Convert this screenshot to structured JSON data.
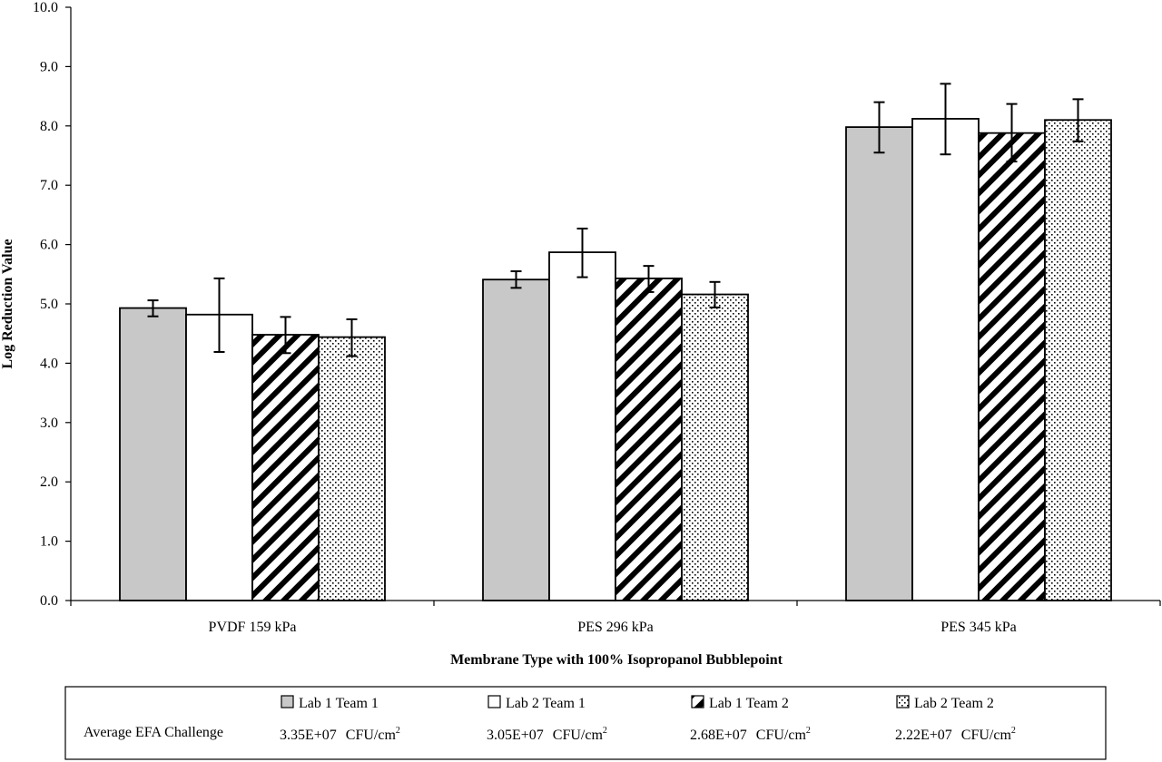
{
  "chart_data": {
    "type": "bar",
    "title": "",
    "xlabel": "Membrane Type with 100% Isopropanol Bubblepoint",
    "ylabel": "Log Reduction Value",
    "ylim": [
      0,
      10
    ],
    "yticks": [
      "0.0",
      "1.0",
      "2.0",
      "3.0",
      "4.0",
      "5.0",
      "6.0",
      "7.0",
      "8.0",
      "9.0",
      "10.0"
    ],
    "categories": [
      "PVDF 159 kPa",
      "PES 296 kPa",
      "PES 345 kPa"
    ],
    "grid": false,
    "legend_placement": "bottom (table below chart)",
    "series": [
      {
        "name": "Lab 1 Team 1",
        "pattern": "gray-fill",
        "color": "#c8c8c8",
        "values": [
          4.93,
          5.41,
          7.98
        ],
        "error_low": [
          4.79,
          5.27,
          7.55
        ],
        "error_high": [
          5.06,
          5.55,
          8.4
        ]
      },
      {
        "name": "Lab 2 Team 1",
        "pattern": "white-fill",
        "color": "#ffffff",
        "values": [
          4.82,
          5.87,
          8.12
        ],
        "error_low": [
          4.19,
          5.45,
          7.52
        ],
        "error_high": [
          5.43,
          6.27,
          8.71
        ]
      },
      {
        "name": "Lab 1 Team 2",
        "pattern": "diagonal-hatch",
        "color": "#000000",
        "values": [
          4.48,
          5.43,
          7.88
        ],
        "error_low": [
          4.17,
          5.2,
          7.4
        ],
        "error_high": [
          4.78,
          5.64,
          8.37
        ]
      },
      {
        "name": "Lab 2 Team 2",
        "pattern": "dots",
        "color": "#000000",
        "values": [
          4.44,
          5.16,
          8.1
        ],
        "error_low": [
          4.12,
          4.94,
          7.74
        ],
        "error_high": [
          4.74,
          5.37,
          8.45
        ]
      }
    ],
    "legend_table": {
      "row_label": "Average EFA Challenge",
      "unit_text": "CFU/cm",
      "unit_exponent": "2",
      "challenges": [
        "3.35E+07",
        "3.05E+07",
        "2.68E+07",
        "2.22E+07"
      ]
    }
  }
}
